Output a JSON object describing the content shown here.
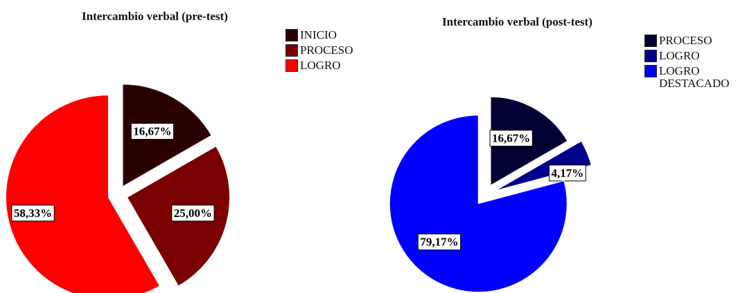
{
  "chart_data": [
    {
      "type": "pie",
      "title": "Intercambio verbal (pre-test)",
      "slices": [
        {
          "label": "INICIO",
          "value": 16.67,
          "text": "16,67%",
          "color": "#2b0000"
        },
        {
          "label": "PROCESO",
          "value": 25.0,
          "text": "25,00%",
          "color": "#7b0000"
        },
        {
          "label": "LOGRO",
          "value": 58.33,
          "text": "58,33%",
          "color": "#ff0000"
        }
      ],
      "legend": [
        "INICIO",
        "PROCESO",
        "LOGRO"
      ],
      "legend_position": "top-right"
    },
    {
      "type": "pie",
      "title": "Intercambio verbal (post-test)",
      "slices": [
        {
          "label": "PROCESO",
          "value": 16.67,
          "text": "16,67%",
          "color": "#000033"
        },
        {
          "label": "LOGRO",
          "value": 4.17,
          "text": "4,17%",
          "color": "#00008b"
        },
        {
          "label": "LOGRO\nDESTACADO",
          "value": 79.17,
          "text": "79,17%",
          "color": "#0000ff"
        }
      ],
      "legend": [
        "PROCESO",
        "LOGRO",
        "LOGRO\nDESTACADO"
      ],
      "legend_position": "top-right"
    }
  ]
}
